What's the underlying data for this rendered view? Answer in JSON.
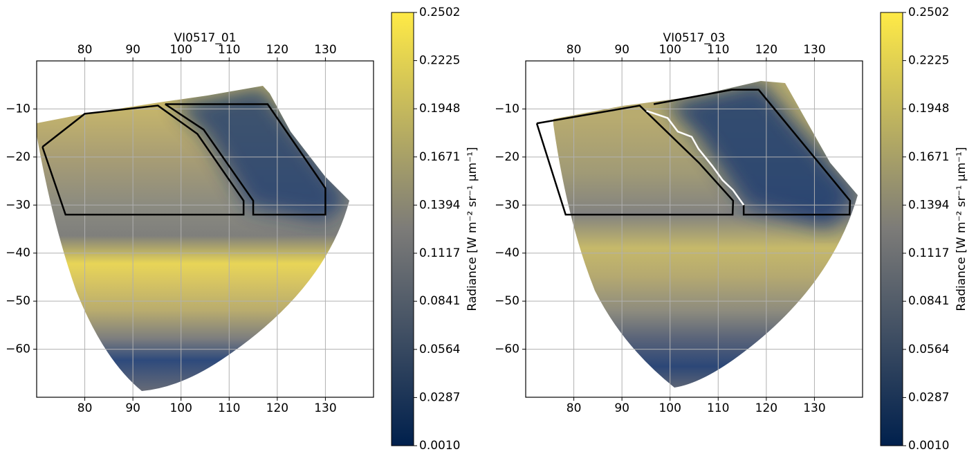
{
  "chart_data": [
    {
      "type": "map",
      "title": "VI0517_01",
      "xlim": [
        70,
        140
      ],
      "ylim": [
        -70,
        0
      ],
      "xticks": [
        80,
        90,
        100,
        110,
        120,
        130
      ],
      "yticks": [
        {
          "value": -10,
          "label": "−10"
        },
        {
          "value": -20,
          "label": "−20"
        },
        {
          "value": -30,
          "label": "−30"
        },
        {
          "value": -40,
          "label": "−40"
        },
        {
          "value": -50,
          "label": "−50"
        },
        {
          "value": -60,
          "label": "−60"
        }
      ],
      "grid": true,
      "outlines": [
        {
          "color": "#000000",
          "x": [
            71.2,
            80,
            95.2,
            103.4,
            113,
            113,
            76,
            71.2
          ],
          "y": [
            -17.9,
            -11,
            -9.3,
            -15.2,
            -29.1,
            -32,
            -32,
            -17.9
          ]
        },
        {
          "color": "#000000",
          "x": [
            96.7,
            118,
            130,
            130,
            115,
            115,
            104.7,
            96.7
          ],
          "y": [
            -9,
            -9,
            -26.5,
            -32,
            -32,
            -29.1,
            -14.3,
            -9
          ]
        }
      ],
      "colorbar": {
        "label": "Radiance [W m⁻² sr⁻¹ μm⁻¹]",
        "lim": [
          0.001,
          0.2502
        ],
        "colors": [
          "#00204d",
          "#7c7b78",
          "#ffea46"
        ],
        "ticks": [
          {
            "value": 0.001,
            "label": "0.0010"
          },
          0.0287,
          0.0564,
          0.0841,
          0.1117,
          0.1394,
          0.1671,
          0.1948,
          0.2225,
          0.2502
        ]
      }
    },
    {
      "type": "map",
      "title": "VI0517_03",
      "xlim": [
        70,
        140
      ],
      "ylim": [
        -70,
        0
      ],
      "xticks": [
        80,
        90,
        100,
        110,
        120,
        130
      ],
      "yticks": [
        {
          "value": -10,
          "label": "−10"
        },
        {
          "value": -20,
          "label": "−20"
        },
        {
          "value": -30,
          "label": "−30"
        },
        {
          "value": -40,
          "label": "−40"
        },
        {
          "value": -50,
          "label": "−50"
        },
        {
          "value": -60,
          "label": "−60"
        }
      ],
      "grid": true,
      "outlines": [
        {
          "color": "#000000",
          "x": [
            72.3,
            93.7,
            106,
            113.1,
            113,
            78.3,
            72.3
          ],
          "y": [
            -13,
            -9.3,
            -21.2,
            -29.1,
            -32,
            -32,
            -13
          ]
        },
        {
          "color": "#000000",
          "x": [
            115.3,
            115.3,
            137.3,
            137.4,
            118.4,
            112.8,
            96.6
          ],
          "y": [
            -30,
            -32,
            -32,
            -29.1,
            -6,
            -6,
            -9
          ]
        },
        {
          "color": "#ffffff",
          "x": [
            95.1,
            99.5,
            101.6,
            104.5,
            105.9,
            108.8,
            110.9,
            113.1,
            115.3
          ],
          "y": [
            -10.4,
            -11.9,
            -14.7,
            -15.8,
            -18.3,
            -21.9,
            -24.8,
            -26.9,
            -30
          ]
        }
      ],
      "colorbar": {
        "label": "Radiance [W m⁻² sr⁻¹ μm⁻¹]",
        "lim": [
          0.001,
          0.2502
        ],
        "colors": [
          "#00204d",
          "#7c7b78",
          "#ffea46"
        ],
        "ticks": [
          {
            "value": 0.001,
            "label": "0.0010"
          },
          0.0287,
          0.0564,
          0.0841,
          0.1117,
          0.1394,
          0.1671,
          0.1948,
          0.2225,
          0.2502
        ]
      }
    }
  ]
}
